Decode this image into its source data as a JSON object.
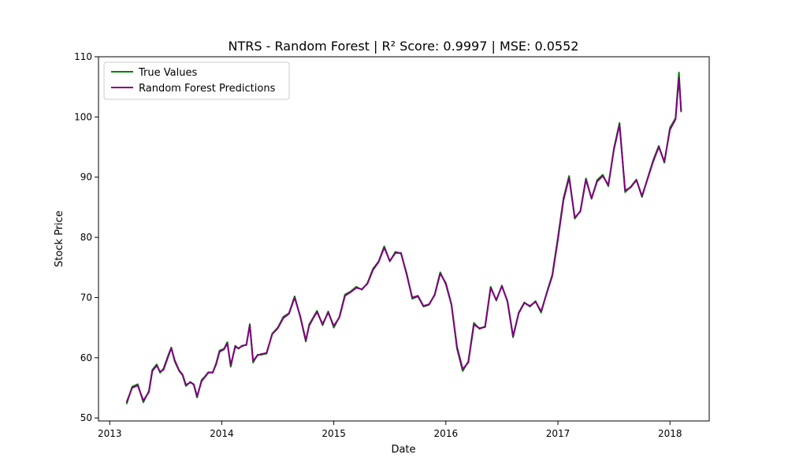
{
  "chart_data": {
    "type": "line",
    "title": "NTRS - Random Forest | R² Score: 0.9997 | MSE: 0.0552",
    "xlabel": "Date",
    "ylabel": "Stock Price",
    "xlim": [
      2012.9,
      2018.35
    ],
    "ylim": [
      49.5,
      110
    ],
    "x_ticks": [
      2013,
      2014,
      2015,
      2016,
      2017,
      2018
    ],
    "x_tick_labels": [
      "2013",
      "2014",
      "2015",
      "2016",
      "2017",
      "2018"
    ],
    "y_ticks": [
      50,
      60,
      70,
      80,
      90,
      100,
      110
    ],
    "y_tick_labels": [
      "50",
      "60",
      "70",
      "80",
      "90",
      "100",
      "110"
    ],
    "grid": false,
    "legend_position": "upper-left",
    "x": [
      2013.15,
      2013.2,
      2013.25,
      2013.3,
      2013.35,
      2013.38,
      2013.42,
      2013.45,
      2013.48,
      2013.52,
      2013.55,
      2013.58,
      2013.62,
      2013.65,
      2013.68,
      2013.72,
      2013.75,
      2013.78,
      2013.82,
      2013.85,
      2013.88,
      2013.92,
      2013.95,
      2013.98,
      2014.02,
      2014.05,
      2014.08,
      2014.12,
      2014.15,
      2014.18,
      2014.22,
      2014.25,
      2014.28,
      2014.32,
      2014.35,
      2014.4,
      2014.45,
      2014.5,
      2014.55,
      2014.6,
      2014.65,
      2014.7,
      2014.75,
      2014.78,
      2014.82,
      2014.85,
      2014.9,
      2014.95,
      2015.0,
      2015.05,
      2015.1,
      2015.15,
      2015.2,
      2015.25,
      2015.3,
      2015.35,
      2015.4,
      2015.45,
      2015.5,
      2015.55,
      2015.6,
      2015.65,
      2015.7,
      2015.75,
      2015.8,
      2015.85,
      2015.9,
      2015.95,
      2016.0,
      2016.05,
      2016.1,
      2016.15,
      2016.2,
      2016.25,
      2016.3,
      2016.35,
      2016.4,
      2016.45,
      2016.5,
      2016.55,
      2016.6,
      2016.65,
      2016.7,
      2016.75,
      2016.8,
      2016.85,
      2016.9,
      2016.95,
      2017.0,
      2017.05,
      2017.1,
      2017.15,
      2017.2,
      2017.25,
      2017.3,
      2017.35,
      2017.4,
      2017.45,
      2017.5,
      2017.55,
      2017.6,
      2017.65,
      2017.7,
      2017.75,
      2017.8,
      2017.85,
      2017.9,
      2017.95,
      2018.0,
      2018.05,
      2018.08,
      2018.1
    ],
    "series": [
      {
        "name": "True Values",
        "color": "#008000",
        "values": [
          52.3,
          55.2,
          55.6,
          52.6,
          54.5,
          58.0,
          58.9,
          57.5,
          58.2,
          60.3,
          61.7,
          59.4,
          57.8,
          57.1,
          55.3,
          56.0,
          55.5,
          53.4,
          56.3,
          56.9,
          57.6,
          57.5,
          59.1,
          61.2,
          61.5,
          62.6,
          58.5,
          62.0,
          61.5,
          62.0,
          62.1,
          65.6,
          59.2,
          60.5,
          60.5,
          60.7,
          64.0,
          65.0,
          66.8,
          67.4,
          70.2,
          66.8,
          62.7,
          65.5,
          66.8,
          67.8,
          65.4,
          67.7,
          65.0,
          66.8,
          70.5,
          71.0,
          71.8,
          71.3,
          72.4,
          74.8,
          76.0,
          78.5,
          76.0,
          77.6,
          77.3,
          74.0,
          69.8,
          70.2,
          68.5,
          68.8,
          70.5,
          74.2,
          72.2,
          68.8,
          61.5,
          57.8,
          59.4,
          65.8,
          64.8,
          65.2,
          71.8,
          69.5,
          72.0,
          69.3,
          63.4,
          67.5,
          69.2,
          68.5,
          69.4,
          67.5,
          70.8,
          73.8,
          80.0,
          86.5,
          90.2,
          83.1,
          84.4,
          89.8,
          86.4,
          89.5,
          90.4,
          88.5,
          94.8,
          99.0,
          87.5,
          88.4,
          89.6,
          86.7,
          89.8,
          92.8,
          95.2,
          92.4,
          98.2,
          99.8,
          107.4,
          100.8
        ]
      },
      {
        "name": "Random Forest Predictions",
        "color": "#800080",
        "values": [
          52.6,
          55.0,
          55.4,
          52.9,
          54.3,
          57.8,
          58.7,
          57.7,
          58.0,
          60.1,
          61.6,
          59.6,
          57.9,
          57.2,
          55.5,
          55.9,
          55.6,
          53.6,
          56.1,
          56.8,
          57.5,
          57.6,
          58.9,
          61.0,
          61.4,
          62.4,
          58.8,
          61.8,
          61.6,
          61.9,
          62.2,
          65.4,
          59.5,
          60.4,
          60.6,
          60.8,
          63.9,
          64.9,
          66.6,
          67.3,
          70.0,
          66.9,
          62.9,
          65.3,
          66.7,
          67.6,
          65.6,
          67.5,
          65.3,
          66.7,
          70.3,
          70.9,
          71.6,
          71.4,
          72.3,
          74.6,
          75.9,
          78.3,
          76.1,
          77.4,
          77.4,
          73.8,
          70.0,
          70.3,
          68.6,
          68.9,
          70.4,
          74.0,
          72.4,
          68.9,
          61.8,
          58.1,
          59.2,
          65.5,
          64.9,
          65.1,
          71.6,
          69.6,
          71.9,
          69.4,
          63.6,
          67.4,
          69.1,
          68.6,
          69.3,
          67.7,
          70.7,
          73.6,
          79.6,
          86.2,
          89.9,
          83.3,
          84.3,
          89.6,
          86.5,
          89.3,
          90.2,
          88.7,
          94.6,
          98.7,
          87.8,
          88.3,
          89.5,
          86.9,
          89.7,
          92.6,
          95.0,
          92.6,
          97.9,
          99.6,
          106.5,
          101.0
        ]
      }
    ]
  }
}
